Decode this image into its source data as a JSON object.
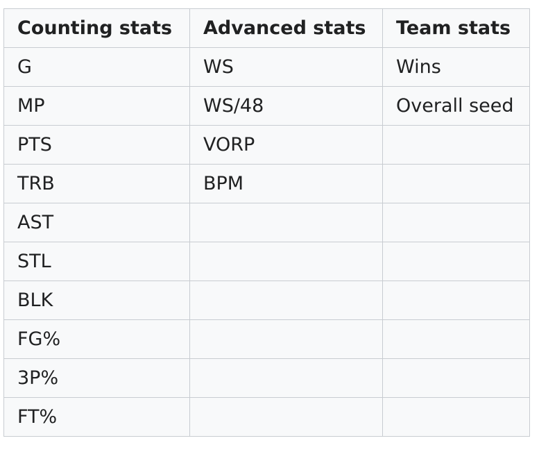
{
  "table": {
    "headers": [
      "Counting stats",
      "Advanced stats",
      "Team stats"
    ],
    "rows": [
      [
        "G",
        "WS",
        "Wins"
      ],
      [
        "MP",
        "WS/48",
        "Overall seed"
      ],
      [
        "PTS",
        "VORP",
        ""
      ],
      [
        "TRB",
        "BPM",
        ""
      ],
      [
        "AST",
        "",
        ""
      ],
      [
        "STL",
        "",
        ""
      ],
      [
        "BLK",
        "",
        ""
      ],
      [
        "FG%",
        "",
        ""
      ],
      [
        "3P%",
        "",
        ""
      ],
      [
        "FT%",
        "",
        ""
      ]
    ]
  }
}
